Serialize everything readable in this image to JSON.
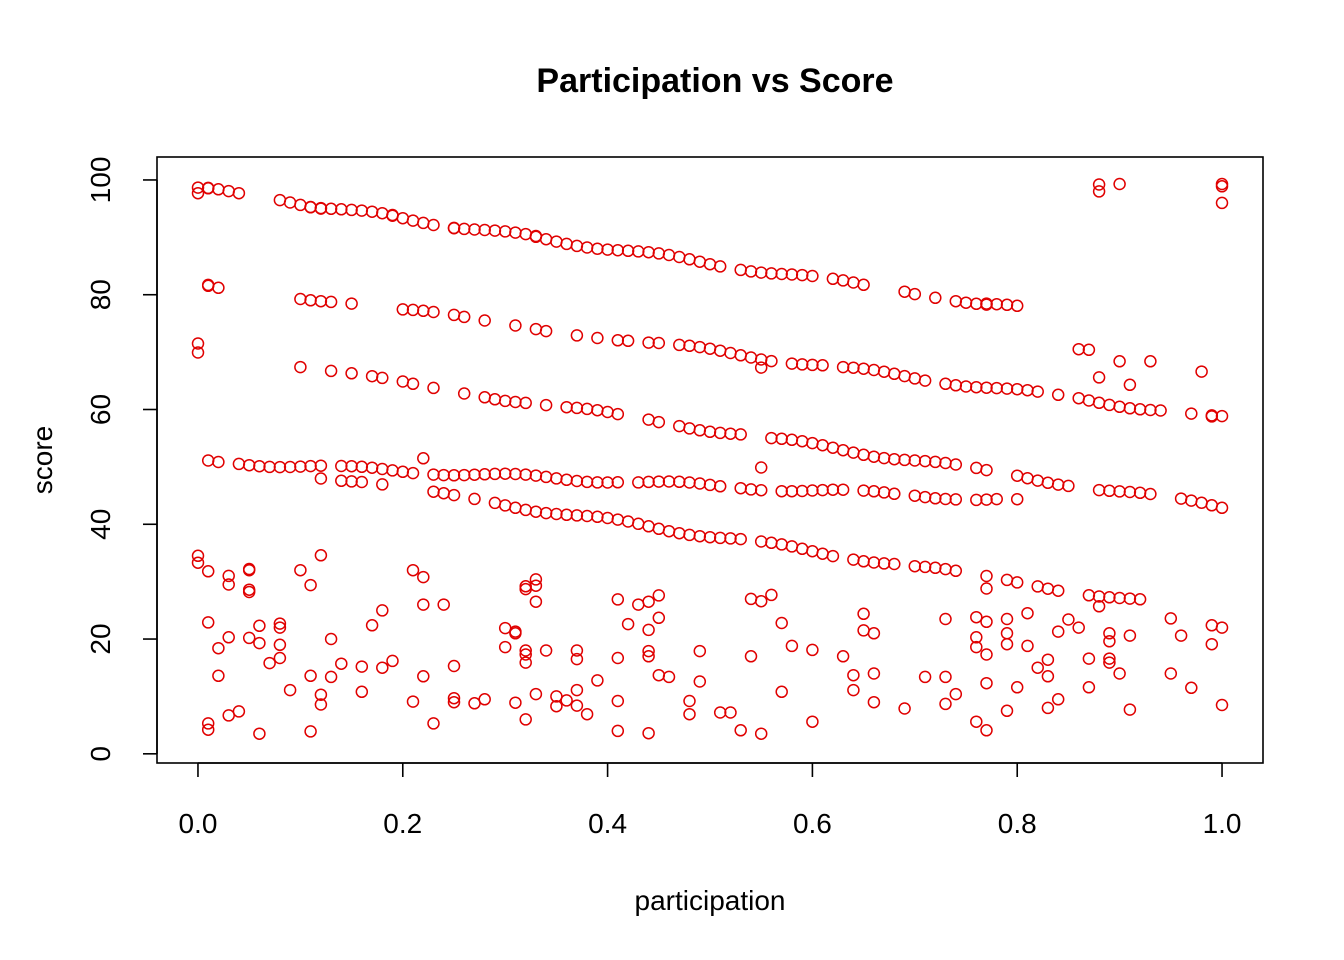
{
  "chart_data": {
    "type": "scatter",
    "title": "Participation vs Score",
    "xlabel": "participation",
    "ylabel": "score",
    "xlim": [
      -0.04,
      1.04
    ],
    "ylim": [
      -1.6,
      104
    ],
    "xticks": [
      0.0,
      0.2,
      0.4,
      0.6,
      0.8,
      1.0
    ],
    "xtick_labels": [
      "0.0",
      "0.2",
      "0.4",
      "0.6",
      "0.8",
      "1.0"
    ],
    "yticks": [
      0,
      20,
      40,
      60,
      80,
      100
    ],
    "ytick_labels": [
      "0",
      "20",
      "40",
      "60",
      "80",
      "100"
    ],
    "grid": false,
    "legend": "none",
    "colors": {
      "points": "#e00000",
      "axis": "#000000"
    },
    "marker": "open-circle",
    "band_points": {
      "bands": [
        {
          "start": 98.5,
          "slope": -26,
          "noise": 0.4,
          "x": [
            0.0,
            0.01,
            0.01,
            0.02,
            0.03,
            0.04,
            0.08,
            0.09,
            0.1,
            0.11,
            0.11,
            0.12,
            0.12,
            0.13,
            0.14,
            0.15,
            0.16,
            0.17,
            0.18,
            0.19,
            0.19,
            0.2,
            0.21,
            0.22,
            0.23,
            0.25,
            0.25,
            0.26,
            0.27,
            0.28,
            0.29,
            0.3,
            0.31,
            0.32,
            0.33,
            0.33,
            0.34,
            0.35,
            0.36,
            0.37,
            0.38,
            0.39,
            0.4,
            0.41,
            0.42,
            0.43,
            0.44,
            0.45,
            0.46,
            0.47,
            0.48,
            0.49,
            0.5,
            0.51,
            0.53,
            0.54,
            0.55,
            0.56,
            0.57,
            0.58,
            0.59,
            0.6,
            0.62,
            0.63,
            0.64,
            0.65,
            0.69,
            0.7,
            0.72,
            0.74,
            0.75,
            0.76,
            0.77,
            0.77,
            0.78,
            0.79,
            0.8
          ]
        },
        {
          "start": 82.0,
          "slope": -23.5,
          "noise": 0.4,
          "x": [
            0.01,
            0.01,
            0.02,
            0.1,
            0.11,
            0.12,
            0.13,
            0.15,
            0.2,
            0.21,
            0.22,
            0.23,
            0.25,
            0.26,
            0.28,
            0.31,
            0.33,
            0.34,
            0.37,
            0.39,
            0.41,
            0.42,
            0.44,
            0.45,
            0.47,
            0.48,
            0.49,
            0.5,
            0.51,
            0.52,
            0.53,
            0.54,
            0.55,
            0.56,
            0.58,
            0.59,
            0.6,
            0.61,
            0.63,
            0.64,
            0.65,
            0.66,
            0.67,
            0.68,
            0.69,
            0.7,
            0.71,
            0.73,
            0.74,
            0.75,
            0.76,
            0.77,
            0.78,
            0.79,
            0.8,
            0.81,
            0.82,
            0.84,
            0.86,
            0.87,
            0.88,
            0.89,
            0.9,
            0.91,
            0.92,
            0.93,
            0.94,
            0.97,
            0.99,
            1.0
          ]
        },
        {
          "start": 70.0,
          "slope": -27,
          "noise": 0.4,
          "x": [
            0.0,
            0.1,
            0.13,
            0.15,
            0.17,
            0.18,
            0.2,
            0.21,
            0.23,
            0.26,
            0.28,
            0.29,
            0.3,
            0.31,
            0.32,
            0.34,
            0.36,
            0.37,
            0.38,
            0.39,
            0.4,
            0.41,
            0.44,
            0.45,
            0.47,
            0.48,
            0.49,
            0.5,
            0.51,
            0.52,
            0.53,
            0.56,
            0.57,
            0.58,
            0.59,
            0.6,
            0.61,
            0.62,
            0.63,
            0.64,
            0.65,
            0.66,
            0.67,
            0.68,
            0.69,
            0.7,
            0.71,
            0.72,
            0.73,
            0.74,
            0.76,
            0.77,
            0.8,
            0.81,
            0.82,
            0.83,
            0.84,
            0.85,
            0.88,
            0.89,
            0.9,
            0.91,
            0.92,
            0.93,
            0.96,
            0.97,
            0.98,
            0.99,
            1.0
          ]
        },
        {
          "start": 51.0,
          "slope": -8.5,
          "noise": 0.4,
          "x": [
            0.01,
            0.02,
            0.04,
            0.05,
            0.06,
            0.07,
            0.08,
            0.09,
            0.1,
            0.11,
            0.12,
            0.14,
            0.15,
            0.16,
            0.17,
            0.18,
            0.19,
            0.2,
            0.21,
            0.23,
            0.24,
            0.25,
            0.26,
            0.27,
            0.28,
            0.29,
            0.3,
            0.31,
            0.32,
            0.33,
            0.34,
            0.35,
            0.36,
            0.37,
            0.38,
            0.39,
            0.4,
            0.41,
            0.43,
            0.44,
            0.45,
            0.46,
            0.47,
            0.48,
            0.49,
            0.5,
            0.51,
            0.53,
            0.54,
            0.55,
            0.57,
            0.58,
            0.59,
            0.6,
            0.61,
            0.62,
            0.63,
            0.65,
            0.66,
            0.67,
            0.68,
            0.7,
            0.71,
            0.72,
            0.73,
            0.74,
            0.76,
            0.77,
            0.78,
            0.8
          ]
        },
        {
          "start": 51.5,
          "slope": -27,
          "noise": 0.4,
          "x": [
            0.12,
            0.14,
            0.15,
            0.16,
            0.18,
            0.23,
            0.24,
            0.25,
            0.27,
            0.29,
            0.3,
            0.31,
            0.32,
            0.33,
            0.34,
            0.35,
            0.36,
            0.37,
            0.38,
            0.39,
            0.4,
            0.41,
            0.42,
            0.43,
            0.44,
            0.45,
            0.46,
            0.47,
            0.48,
            0.49,
            0.5,
            0.51,
            0.52,
            0.53,
            0.55,
            0.56,
            0.57,
            0.58,
            0.59,
            0.6,
            0.61,
            0.62,
            0.64,
            0.65,
            0.66,
            0.67,
            0.68,
            0.7,
            0.71,
            0.72,
            0.73,
            0.74,
            0.77,
            0.79,
            0.8,
            0.82,
            0.83,
            0.84,
            0.87,
            0.88,
            0.89,
            0.9,
            0.91,
            0.92
          ]
        }
      ]
    },
    "points": [
      [
        0.0,
        34.5
      ],
      [
        0.0,
        33.3
      ],
      [
        0.01,
        31.8
      ],
      [
        0.01,
        22.9
      ],
      [
        0.01,
        5.3
      ],
      [
        0.01,
        4.2
      ],
      [
        0.02,
        18.4
      ],
      [
        0.02,
        13.6
      ],
      [
        0.03,
        31.0
      ],
      [
        0.03,
        29.5
      ],
      [
        0.03,
        20.3
      ],
      [
        0.03,
        6.7
      ],
      [
        0.04,
        7.4
      ],
      [
        0.05,
        32.2
      ],
      [
        0.05,
        32.0
      ],
      [
        0.05,
        28.6
      ],
      [
        0.05,
        28.2
      ],
      [
        0.05,
        20.2
      ],
      [
        0.06,
        22.3
      ],
      [
        0.06,
        19.3
      ],
      [
        0.06,
        3.5
      ],
      [
        0.07,
        15.8
      ],
      [
        0.08,
        22.7
      ],
      [
        0.08,
        22.0
      ],
      [
        0.08,
        19.0
      ],
      [
        0.08,
        16.7
      ],
      [
        0.09,
        11.1
      ],
      [
        0.1,
        32.0
      ],
      [
        0.11,
        29.4
      ],
      [
        0.11,
        13.6
      ],
      [
        0.11,
        3.9
      ],
      [
        0.12,
        34.6
      ],
      [
        0.12,
        10.3
      ],
      [
        0.12,
        8.6
      ],
      [
        0.13,
        20.0
      ],
      [
        0.13,
        13.4
      ],
      [
        0.14,
        15.7
      ],
      [
        0.16,
        15.2
      ],
      [
        0.16,
        10.8
      ],
      [
        0.17,
        22.4
      ],
      [
        0.18,
        25.0
      ],
      [
        0.18,
        15.0
      ],
      [
        0.19,
        16.2
      ],
      [
        0.21,
        32.0
      ],
      [
        0.21,
        9.1
      ],
      [
        0.22,
        30.8
      ],
      [
        0.22,
        26.0
      ],
      [
        0.22,
        13.5
      ],
      [
        0.23,
        5.3
      ],
      [
        0.24,
        26.0
      ],
      [
        0.25,
        15.3
      ],
      [
        0.25,
        9.7
      ],
      [
        0.25,
        9.0
      ],
      [
        0.27,
        8.8
      ],
      [
        0.28,
        9.5
      ],
      [
        0.3,
        21.9
      ],
      [
        0.3,
        18.6
      ],
      [
        0.31,
        21.3
      ],
      [
        0.31,
        21.0
      ],
      [
        0.31,
        8.9
      ],
      [
        0.32,
        29.2
      ],
      [
        0.32,
        28.7
      ],
      [
        0.32,
        18.0
      ],
      [
        0.32,
        17.3
      ],
      [
        0.32,
        15.9
      ],
      [
        0.32,
        6.0
      ],
      [
        0.33,
        30.4
      ],
      [
        0.33,
        29.3
      ],
      [
        0.33,
        26.5
      ],
      [
        0.33,
        10.4
      ],
      [
        0.34,
        18.0
      ],
      [
        0.35,
        10.0
      ],
      [
        0.35,
        8.3
      ],
      [
        0.36,
        9.3
      ],
      [
        0.37,
        18.0
      ],
      [
        0.37,
        16.5
      ],
      [
        0.37,
        11.1
      ],
      [
        0.37,
        8.4
      ],
      [
        0.38,
        6.9
      ],
      [
        0.39,
        12.8
      ],
      [
        0.41,
        26.9
      ],
      [
        0.41,
        16.7
      ],
      [
        0.41,
        9.2
      ],
      [
        0.41,
        4.0
      ],
      [
        0.42,
        22.6
      ],
      [
        0.43,
        26.0
      ],
      [
        0.44,
        26.5
      ],
      [
        0.44,
        21.6
      ],
      [
        0.44,
        17.9
      ],
      [
        0.44,
        17.0
      ],
      [
        0.44,
        3.6
      ],
      [
        0.45,
        27.6
      ],
      [
        0.45,
        23.7
      ],
      [
        0.45,
        13.7
      ],
      [
        0.46,
        13.4
      ],
      [
        0.48,
        9.2
      ],
      [
        0.48,
        6.9
      ],
      [
        0.49,
        17.9
      ],
      [
        0.49,
        12.6
      ],
      [
        0.51,
        7.2
      ],
      [
        0.52,
        7.2
      ],
      [
        0.53,
        4.1
      ],
      [
        0.54,
        27.0
      ],
      [
        0.54,
        17.0
      ],
      [
        0.55,
        26.6
      ],
      [
        0.55,
        3.5
      ],
      [
        0.56,
        27.7
      ],
      [
        0.57,
        22.8
      ],
      [
        0.57,
        10.8
      ],
      [
        0.58,
        18.8
      ],
      [
        0.6,
        18.1
      ],
      [
        0.6,
        5.6
      ],
      [
        0.63,
        17.0
      ],
      [
        0.64,
        13.7
      ],
      [
        0.64,
        11.1
      ],
      [
        0.65,
        24.4
      ],
      [
        0.65,
        21.5
      ],
      [
        0.66,
        21.0
      ],
      [
        0.66,
        14.0
      ],
      [
        0.66,
        9.0
      ],
      [
        0.69,
        7.9
      ],
      [
        0.71,
        13.4
      ],
      [
        0.73,
        23.5
      ],
      [
        0.73,
        13.4
      ],
      [
        0.73,
        8.7
      ],
      [
        0.74,
        10.4
      ],
      [
        0.76,
        23.8
      ],
      [
        0.76,
        20.3
      ],
      [
        0.76,
        18.6
      ],
      [
        0.76,
        5.6
      ],
      [
        0.77,
        28.8
      ],
      [
        0.77,
        23.0
      ],
      [
        0.77,
        17.3
      ],
      [
        0.77,
        12.3
      ],
      [
        0.77,
        4.1
      ],
      [
        0.79,
        23.5
      ],
      [
        0.79,
        21.0
      ],
      [
        0.79,
        19.1
      ],
      [
        0.79,
        7.5
      ],
      [
        0.8,
        11.6
      ],
      [
        0.81,
        24.5
      ],
      [
        0.81,
        18.8
      ],
      [
        0.82,
        15.0
      ],
      [
        0.83,
        16.4
      ],
      [
        0.83,
        13.5
      ],
      [
        0.83,
        8.0
      ],
      [
        0.84,
        21.3
      ],
      [
        0.84,
        9.5
      ],
      [
        0.85,
        23.4
      ],
      [
        0.86,
        22.0
      ],
      [
        0.87,
        16.6
      ],
      [
        0.87,
        11.6
      ],
      [
        0.88,
        25.7
      ],
      [
        0.89,
        21.0
      ],
      [
        0.89,
        19.6
      ],
      [
        0.89,
        16.6
      ],
      [
        0.89,
        15.9
      ],
      [
        0.9,
        14.0
      ],
      [
        0.91,
        20.6
      ],
      [
        0.91,
        7.7
      ],
      [
        0.95,
        23.6
      ],
      [
        0.95,
        14.0
      ],
      [
        0.96,
        20.6
      ],
      [
        0.97,
        11.5
      ],
      [
        0.99,
        22.4
      ],
      [
        0.99,
        19.1
      ],
      [
        1.0,
        22.0
      ],
      [
        1.0,
        8.5
      ],
      [
        0.0,
        71.5
      ],
      [
        0.0,
        97.7
      ],
      [
        0.22,
        51.5
      ],
      [
        0.55,
        67.3
      ],
      [
        0.55,
        49.9
      ],
      [
        0.88,
        99.2
      ],
      [
        0.88,
        98.0
      ],
      [
        0.9,
        99.3
      ],
      [
        1.0,
        99.3
      ],
      [
        1.0,
        98.9
      ],
      [
        1.0,
        96.0
      ],
      [
        0.86,
        70.5
      ],
      [
        0.87,
        70.4
      ],
      [
        0.88,
        65.6
      ],
      [
        0.9,
        68.4
      ],
      [
        0.91,
        64.3
      ],
      [
        0.93,
        68.4
      ],
      [
        0.98,
        66.6
      ],
      [
        0.99,
        58.8
      ]
    ]
  }
}
